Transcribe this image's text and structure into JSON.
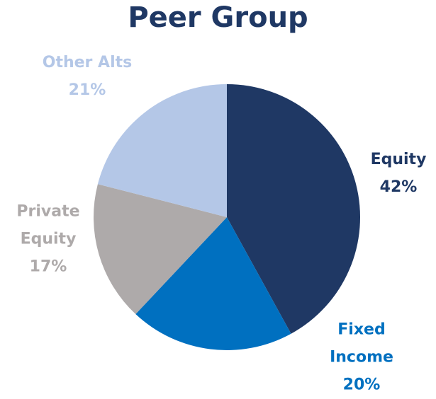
{
  "chart_data": {
    "type": "pie",
    "title": "Peer Group",
    "categories": [
      "Equity",
      "Fixed Income",
      "Private Equity",
      "Other Alts"
    ],
    "values": [
      42,
      20,
      17,
      21
    ],
    "value_labels": [
      "42%",
      "20%",
      "17%",
      "21%"
    ],
    "colors": [
      "#1f3864",
      "#0070c0",
      "#aeaaaa",
      "#b4c7e7"
    ]
  }
}
